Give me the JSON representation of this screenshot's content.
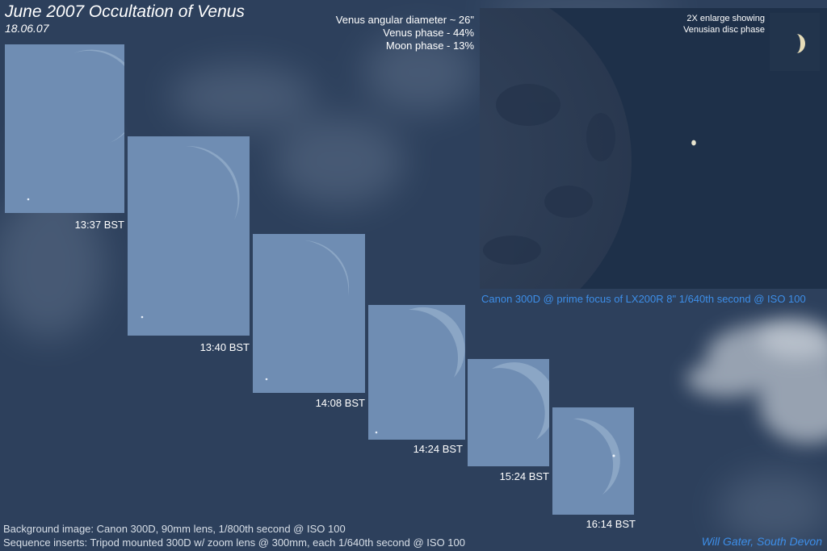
{
  "title": "June 2007 Occultation of Venus",
  "date": "18.06.07",
  "info": {
    "diameter": "Venus angular diameter ~ 26\"",
    "venus_phase": "Venus phase - 44%",
    "moon_phase": "Moon phase - 13%"
  },
  "inset": {
    "enlarge_line1": "2X enlarge showing",
    "enlarge_line2": "Venusian disc phase",
    "caption": "Canon 300D @ prime focus of LX200R 8\" 1/640th second @ ISO 100"
  },
  "sequence": [
    {
      "time": "13:37 BST"
    },
    {
      "time": "13:40 BST"
    },
    {
      "time": "14:08 BST"
    },
    {
      "time": "14:24 BST"
    },
    {
      "time": "15:24 BST"
    },
    {
      "time": "16:14 BST"
    }
  ],
  "footer": {
    "line1": "Background image: Canon 300D, 90mm lens, 1/800th second @ ISO 100",
    "line2": "Sequence inserts: Tripod mounted 300D w/ zoom lens @ 300mm, each 1/640th second @ ISO 100"
  },
  "credit": "Will Gater, South Devon",
  "colors": {
    "sky": "#2c3f5b",
    "frame": "#6f8db3",
    "caption": "#3d8ee8"
  }
}
